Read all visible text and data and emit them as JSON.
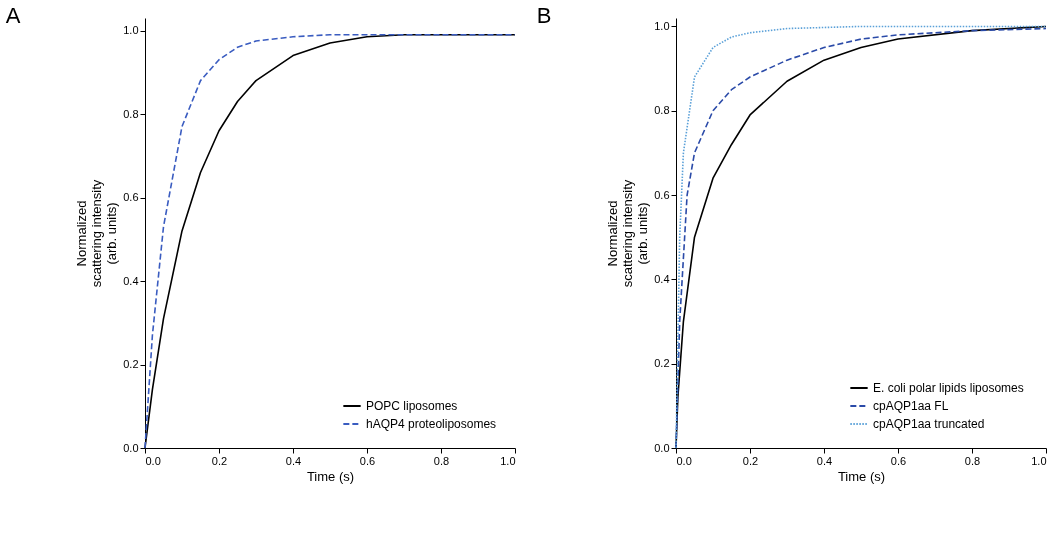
{
  "chart_data": [
    {
      "type": "line",
      "title": "A",
      "xlabel": "Time (s)",
      "ylabel": "Normalized\nscattering intensity\n(arb. units)",
      "xlim": [
        0,
        1.0
      ],
      "ylim": [
        0,
        1.03
      ],
      "xticks": [
        {
          "value": 0,
          "label": "0.0"
        },
        {
          "value": 0.2,
          "label": "0.2"
        },
        {
          "value": 0.4,
          "label": "0.4"
        },
        {
          "value": 0.6,
          "label": "0.6"
        },
        {
          "value": 0.8,
          "label": "0.8"
        },
        {
          "value": 1.0,
          "label": "1.0"
        }
      ],
      "yticks": [
        {
          "value": 0,
          "label": "0.0"
        },
        {
          "value": 0.2,
          "label": "0.2"
        },
        {
          "value": 0.4,
          "label": "0.4"
        },
        {
          "value": 0.6,
          "label": "0.6"
        },
        {
          "value": 0.8,
          "label": "0.8"
        },
        {
          "value": 1.0,
          "label": "1.0"
        }
      ],
      "grid": false,
      "legend": "bottom right",
      "marker": "none",
      "series": [
        {
          "name": "POPC liposomes",
          "color": "#000000",
          "line_style": "solid",
          "x": [
            0,
            0.02,
            0.05,
            0.1,
            0.15,
            0.2,
            0.25,
            0.3,
            0.4,
            0.5,
            0.6,
            0.7,
            0.8,
            1.0
          ],
          "values": [
            0,
            0.14,
            0.31,
            0.52,
            0.66,
            0.76,
            0.83,
            0.88,
            0.94,
            0.97,
            0.985,
            0.99,
            0.99,
            0.99
          ]
        },
        {
          "name": "hAQP4 proteoliposomes",
          "color": "#3a5cc0",
          "line_style": "dashed",
          "x": [
            0,
            0.02,
            0.05,
            0.1,
            0.15,
            0.2,
            0.25,
            0.3,
            0.4,
            0.5,
            1.0
          ],
          "values": [
            0,
            0.27,
            0.53,
            0.77,
            0.88,
            0.93,
            0.96,
            0.975,
            0.985,
            0.99,
            0.99
          ]
        }
      ]
    },
    {
      "type": "line",
      "title": "B",
      "xlabel": "Time (s)",
      "ylabel": "Normalized\nscattering intensity\n(arb. units)",
      "xlim": [
        0,
        1.0
      ],
      "ylim": [
        0,
        1.02
      ],
      "xticks": [
        {
          "value": 0,
          "label": "0.0"
        },
        {
          "value": 0.2,
          "label": "0.2"
        },
        {
          "value": 0.4,
          "label": "0.4"
        },
        {
          "value": 0.6,
          "label": "0.6"
        },
        {
          "value": 0.8,
          "label": "0.8"
        },
        {
          "value": 1.0,
          "label": "1.0"
        }
      ],
      "yticks": [
        {
          "value": 0,
          "label": "0.0"
        },
        {
          "value": 0.2,
          "label": "0.2"
        },
        {
          "value": 0.4,
          "label": "0.4"
        },
        {
          "value": 0.6,
          "label": "0.6"
        },
        {
          "value": 0.8,
          "label": "0.8"
        },
        {
          "value": 1.0,
          "label": "1.0"
        }
      ],
      "grid": false,
      "legend": "bottom right",
      "marker": "none",
      "series": [
        {
          "name": "E. coli  polar lipids liposomes",
          "color": "#000000",
          "line_style": "solid",
          "x": [
            0,
            0.005,
            0.02,
            0.05,
            0.1,
            0.15,
            0.2,
            0.3,
            0.4,
            0.5,
            0.6,
            0.8,
            1.0
          ],
          "values": [
            0,
            0.12,
            0.3,
            0.5,
            0.64,
            0.72,
            0.79,
            0.87,
            0.92,
            0.95,
            0.97,
            0.99,
            1.0
          ]
        },
        {
          "name": "cpAQP1aa FL",
          "color": "#2a4aa8",
          "line_style": "dashed",
          "x": [
            0,
            0.01,
            0.03,
            0.05,
            0.1,
            0.15,
            0.2,
            0.3,
            0.4,
            0.5,
            0.6,
            0.8,
            1.0
          ],
          "values": [
            0,
            0.3,
            0.6,
            0.7,
            0.8,
            0.85,
            0.88,
            0.92,
            0.95,
            0.97,
            0.98,
            0.99,
            0.995
          ]
        },
        {
          "name": "cpAQP1aa truncated",
          "color": "#5aa0d8",
          "line_style": "dotted",
          "x": [
            0,
            0.01,
            0.02,
            0.05,
            0.1,
            0.15,
            0.2,
            0.3,
            0.5,
            1.0
          ],
          "values": [
            0,
            0.5,
            0.7,
            0.88,
            0.95,
            0.975,
            0.985,
            0.995,
            1.0,
            1.0
          ]
        }
      ]
    }
  ]
}
